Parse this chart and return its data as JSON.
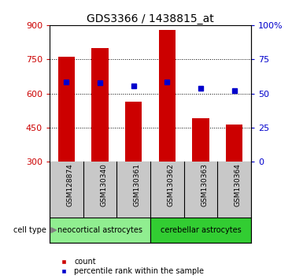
{
  "title": "GDS3366 / 1438815_at",
  "categories": [
    "GSM128874",
    "GSM130340",
    "GSM130361",
    "GSM130362",
    "GSM130363",
    "GSM130364"
  ],
  "bar_values": [
    760,
    800,
    565,
    880,
    490,
    465
  ],
  "percentile_values": [
    650,
    648,
    632,
    650,
    622,
    613
  ],
  "bar_color": "#cc0000",
  "percentile_color": "#0000cc",
  "ylim_left": [
    300,
    900
  ],
  "ylim_right": [
    0,
    100
  ],
  "yticks_left": [
    300,
    450,
    600,
    750,
    900
  ],
  "yticks_right": [
    0,
    25,
    50,
    75,
    100
  ],
  "ytick_labels_right": [
    "0",
    "25",
    "50",
    "75",
    "100%"
  ],
  "groups": [
    {
      "label": "neocortical astrocytes",
      "color": "#90ee90",
      "indices": [
        0,
        1,
        2
      ]
    },
    {
      "label": "cerebellar astrocytes",
      "color": "#32cd32",
      "indices": [
        3,
        4,
        5
      ]
    }
  ],
  "cell_type_label": "cell type",
  "legend_items": [
    {
      "label": "count",
      "color": "#cc0000"
    },
    {
      "label": "percentile rank within the sample",
      "color": "#0000cc"
    }
  ],
  "tick_area_bg": "#c8c8c8",
  "bar_width": 0.5,
  "figsize": [
    3.71,
    3.54
  ],
  "dpi": 100
}
